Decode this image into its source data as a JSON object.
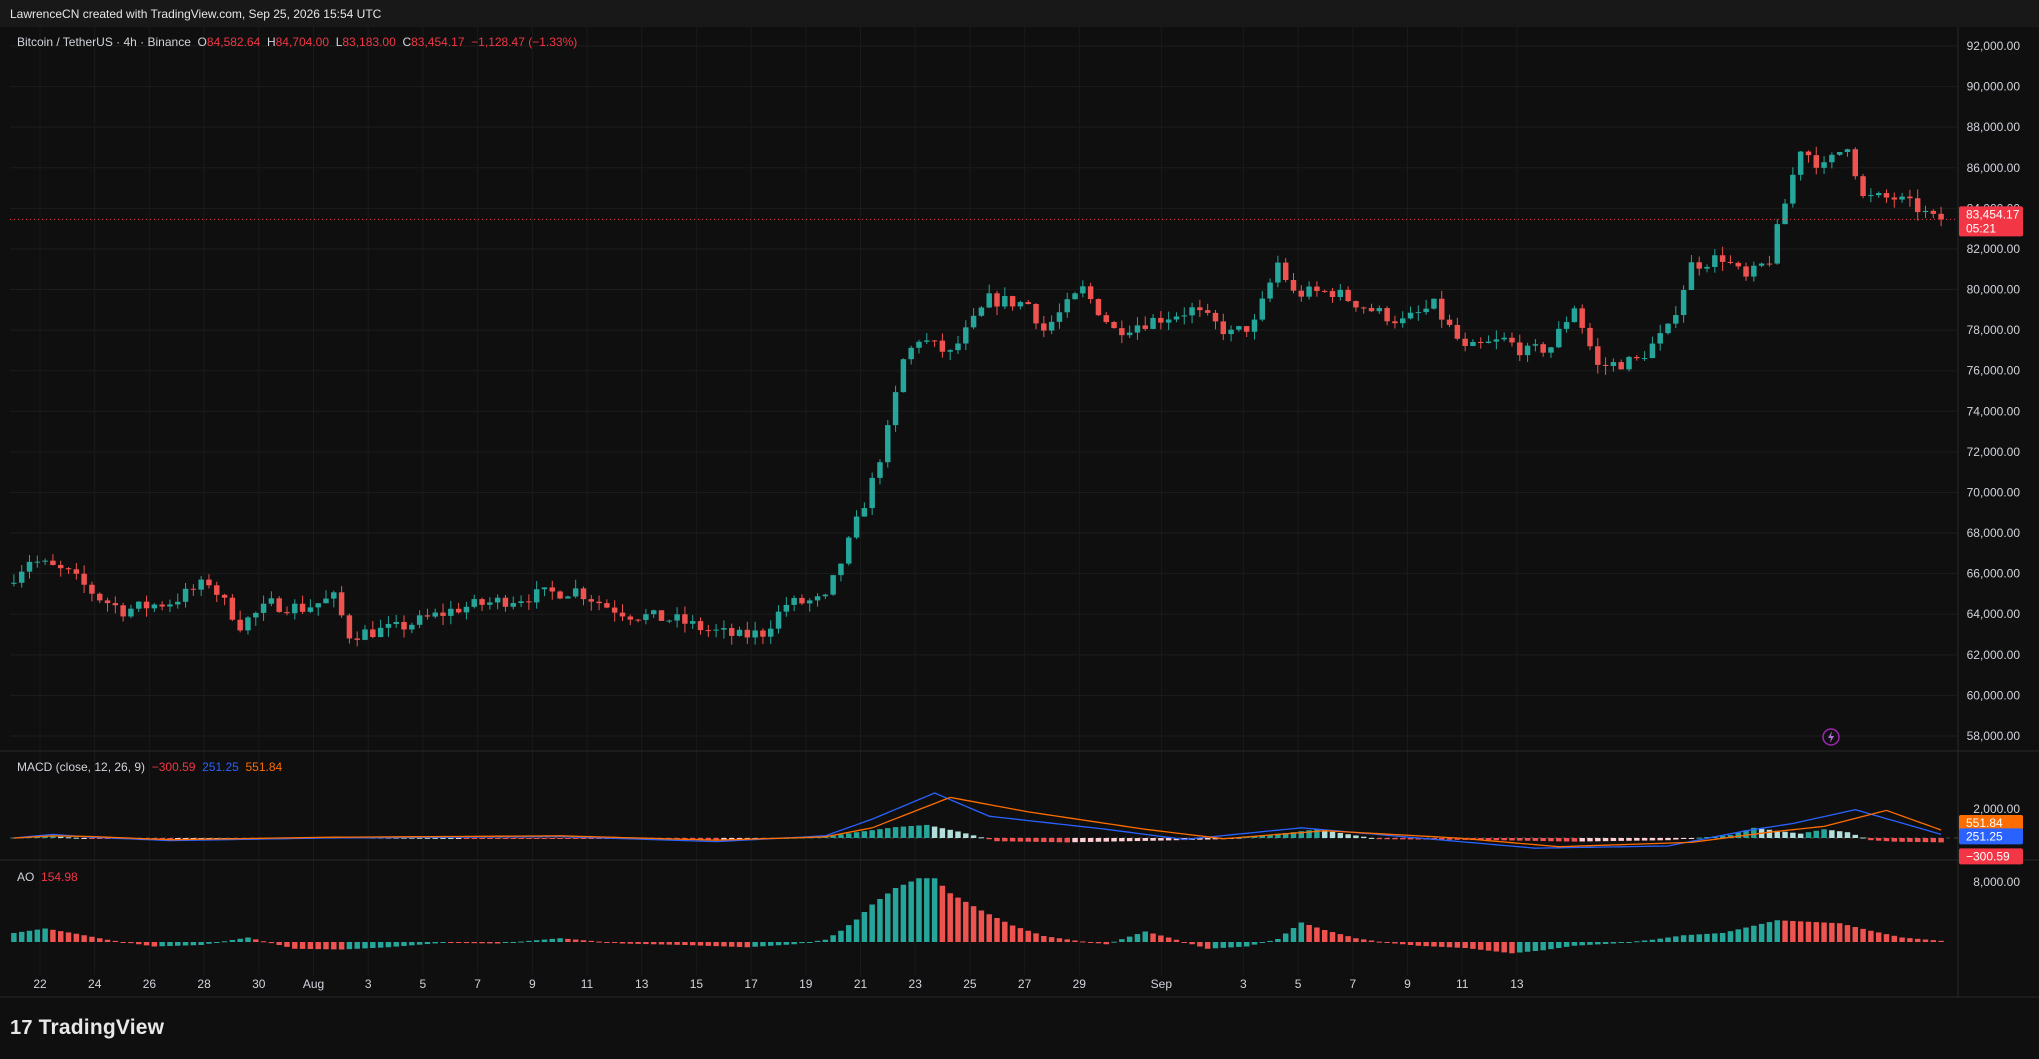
{
  "header": {
    "attribution": "LawrenceCN created with TradingView.com, Sep 25, 2026 15:54 UTC"
  },
  "symbol": {
    "name": "Bitcoin / TetherUS · 4h · Binance",
    "open_label": "O",
    "open": "84,582.64",
    "high_label": "H",
    "high": "84,704.00",
    "low_label": "L",
    "low": "83,183.00",
    "close_label": "C",
    "close": "83,454.17",
    "change": "−1,128.47 (−1.33%)",
    "last_price": "83,454.17",
    "countdown": "05:21"
  },
  "macd": {
    "label": "MACD (close, 12, 26, 9)",
    "hist": "−300.59",
    "macd": "251.25",
    "signal": "551.84"
  },
  "ao": {
    "label": "AO",
    "value": "154.98"
  },
  "brand": {
    "name": "TradingView"
  },
  "colors": {
    "up": "#26a69a",
    "down": "#ef5350",
    "macd_line": "#2962ff",
    "signal_line": "#ff6d00",
    "price_tag": "#f23645"
  },
  "chart_data": [
    {
      "type": "candlestick",
      "title": "Bitcoin / TetherUS · 4h · Binance",
      "x_tick_labels": [
        "22",
        "24",
        "26",
        "28",
        "30",
        "Aug",
        "3",
        "5",
        "7",
        "9",
        "11",
        "13",
        "15",
        "17",
        "19",
        "21",
        "23",
        "25",
        "27",
        "29",
        "Sep",
        "3",
        "5",
        "7",
        "9",
        "11",
        "13"
      ],
      "y_tick_labels": [
        "92,000.00",
        "90,000.00",
        "88,000.00",
        "86,000.00",
        "84,000.00",
        "82,000.00",
        "80,000.00",
        "78,000.00",
        "76,000.00",
        "74,000.00",
        "72,000.00",
        "70,000.00",
        "68,000.00",
        "66,000.00",
        "64,000.00",
        "62,000.00",
        "60,000.00",
        "58,000.00"
      ],
      "ylim": [
        57500,
        93000
      ],
      "grid": true,
      "price_path": [
        [
          0,
          65500
        ],
        [
          3,
          66700
        ],
        [
          8,
          66000
        ],
        [
          12,
          64800
        ],
        [
          15,
          64200
        ],
        [
          21,
          64600
        ],
        [
          26,
          65600
        ],
        [
          30,
          63500
        ],
        [
          34,
          64500
        ],
        [
          38,
          64300
        ],
        [
          42,
          64800
        ],
        [
          44,
          63000
        ],
        [
          50,
          63300
        ],
        [
          54,
          63800
        ],
        [
          58,
          64300
        ],
        [
          64,
          64700
        ],
        [
          69,
          65000
        ],
        [
          73,
          65200
        ],
        [
          77,
          64400
        ],
        [
          80,
          64000
        ],
        [
          86,
          63700
        ],
        [
          90,
          63200
        ],
        [
          94,
          62900
        ],
        [
          97,
          63100
        ],
        [
          100,
          64500
        ],
        [
          105,
          64700
        ],
        [
          108,
          67500
        ],
        [
          111,
          70500
        ],
        [
          113,
          73000
        ],
        [
          115,
          76500
        ],
        [
          117,
          77600
        ],
        [
          121,
          76800
        ],
        [
          126,
          79500
        ],
        [
          131,
          79300
        ],
        [
          133,
          78000
        ],
        [
          138,
          80000
        ],
        [
          140,
          79000
        ],
        [
          142,
          78000
        ],
        [
          147,
          78500
        ],
        [
          152,
          79000
        ],
        [
          157,
          77800
        ],
        [
          160,
          78300
        ],
        [
          163,
          81300
        ],
        [
          165,
          79800
        ],
        [
          170,
          79900
        ],
        [
          175,
          79000
        ],
        [
          179,
          78400
        ],
        [
          183,
          79200
        ],
        [
          187,
          77000
        ],
        [
          192,
          77500
        ],
        [
          195,
          76900
        ],
        [
          198,
          77200
        ],
        [
          201,
          79200
        ],
        [
          204,
          76200
        ],
        [
          209,
          76500
        ],
        [
          213,
          78000
        ],
        [
          216,
          81200
        ],
        [
          220,
          81600
        ],
        [
          223,
          80500
        ],
        [
          226,
          81500
        ],
        [
          230,
          87000
        ],
        [
          233,
          86000
        ],
        [
          236,
          87200
        ],
        [
          238,
          84500
        ],
        [
          242,
          84500
        ],
        [
          245,
          84000
        ],
        [
          247,
          83454
        ]
      ],
      "candle_count": 248
    },
    {
      "type": "line",
      "title": "MACD (close, 12, 26, 9)",
      "series": [
        {
          "name": "MACD",
          "path": [
            [
              0,
              0
            ],
            [
              5,
              250
            ],
            [
              10,
              50
            ],
            [
              20,
              -180
            ],
            [
              40,
              0
            ],
            [
              70,
              100
            ],
            [
              90,
              -250
            ],
            [
              104,
              150
            ],
            [
              110,
              1300
            ],
            [
              118,
              3100
            ],
            [
              125,
              1500
            ],
            [
              140,
              600
            ],
            [
              150,
              -100
            ],
            [
              165,
              700
            ],
            [
              180,
              0
            ],
            [
              195,
              -700
            ],
            [
              212,
              -550
            ],
            [
              222,
              500
            ],
            [
              228,
              1000
            ],
            [
              236,
              1950
            ],
            [
              247,
              251.25
            ]
          ]
        },
        {
          "name": "Signal",
          "path": [
            [
              0,
              0
            ],
            [
              5,
              150
            ],
            [
              10,
              100
            ],
            [
              20,
              -120
            ],
            [
              40,
              50
            ],
            [
              70,
              150
            ],
            [
              90,
              -150
            ],
            [
              104,
              80
            ],
            [
              110,
              700
            ],
            [
              120,
              2800
            ],
            [
              130,
              1800
            ],
            [
              145,
              600
            ],
            [
              155,
              -50
            ],
            [
              168,
              500
            ],
            [
              185,
              0
            ],
            [
              198,
              -600
            ],
            [
              215,
              -300
            ],
            [
              225,
              400
            ],
            [
              232,
              800
            ],
            [
              240,
              1900
            ],
            [
              247,
              551.84
            ]
          ]
        }
      ],
      "histogram": [
        [
          0,
          30
        ],
        [
          5,
          120
        ],
        [
          10,
          -50
        ],
        [
          20,
          -80
        ],
        [
          40,
          50
        ],
        [
          70,
          -40
        ],
        [
          90,
          -120
        ],
        [
          104,
          80
        ],
        [
          108,
          400
        ],
        [
          113,
          750
        ],
        [
          117,
          900
        ],
        [
          121,
          450
        ],
        [
          126,
          -220
        ],
        [
          135,
          -300
        ],
        [
          145,
          -200
        ],
        [
          155,
          -80
        ],
        [
          164,
          400
        ],
        [
          167,
          600
        ],
        [
          175,
          -80
        ],
        [
          190,
          -150
        ],
        [
          200,
          -250
        ],
        [
          212,
          -150
        ],
        [
          220,
          200
        ],
        [
          223,
          700
        ],
        [
          226,
          500
        ],
        [
          229,
          300
        ],
        [
          232,
          600
        ],
        [
          235,
          400
        ],
        [
          238,
          -150
        ],
        [
          241,
          -250
        ],
        [
          247,
          -300.59
        ]
      ],
      "y_tick_labels": [
        "2,000.00"
      ],
      "values": {
        "macd": 251.25,
        "signal": 551.84,
        "histogram": -300.59
      }
    },
    {
      "type": "bar",
      "title": "AO",
      "histogram": [
        [
          0,
          1200
        ],
        [
          4,
          1800
        ],
        [
          8,
          1100
        ],
        [
          12,
          300
        ],
        [
          18,
          -600
        ],
        [
          24,
          -400
        ],
        [
          30,
          600
        ],
        [
          36,
          -900
        ],
        [
          42,
          -1000
        ],
        [
          48,
          -700
        ],
        [
          55,
          -100
        ],
        [
          62,
          -200
        ],
        [
          70,
          500
        ],
        [
          78,
          -200
        ],
        [
          86,
          -400
        ],
        [
          94,
          -700
        ],
        [
          100,
          -300
        ],
        [
          104,
          300
        ],
        [
          106,
          1500
        ],
        [
          108,
          3000
        ],
        [
          110,
          5000
        ],
        [
          113,
          7200
        ],
        [
          116,
          8500
        ],
        [
          118,
          8500
        ],
        [
          120,
          6500
        ],
        [
          124,
          4200
        ],
        [
          128,
          2200
        ],
        [
          132,
          800
        ],
        [
          136,
          200
        ],
        [
          140,
          -300
        ],
        [
          145,
          1400
        ],
        [
          148,
          600
        ],
        [
          153,
          -900
        ],
        [
          158,
          -600
        ],
        [
          162,
          400
        ],
        [
          165,
          2600
        ],
        [
          168,
          1600
        ],
        [
          172,
          500
        ],
        [
          176,
          -100
        ],
        [
          180,
          -500
        ],
        [
          186,
          -800
        ],
        [
          192,
          -1500
        ],
        [
          196,
          -1100
        ],
        [
          200,
          -500
        ],
        [
          205,
          -200
        ],
        [
          210,
          300
        ],
        [
          214,
          900
        ],
        [
          219,
          1200
        ],
        [
          226,
          2900
        ],
        [
          234,
          2500
        ],
        [
          238,
          1500
        ],
        [
          242,
          600
        ],
        [
          247,
          154.98
        ]
      ],
      "y_tick_labels": [
        "8,000.00"
      ],
      "value": 154.98
    }
  ]
}
